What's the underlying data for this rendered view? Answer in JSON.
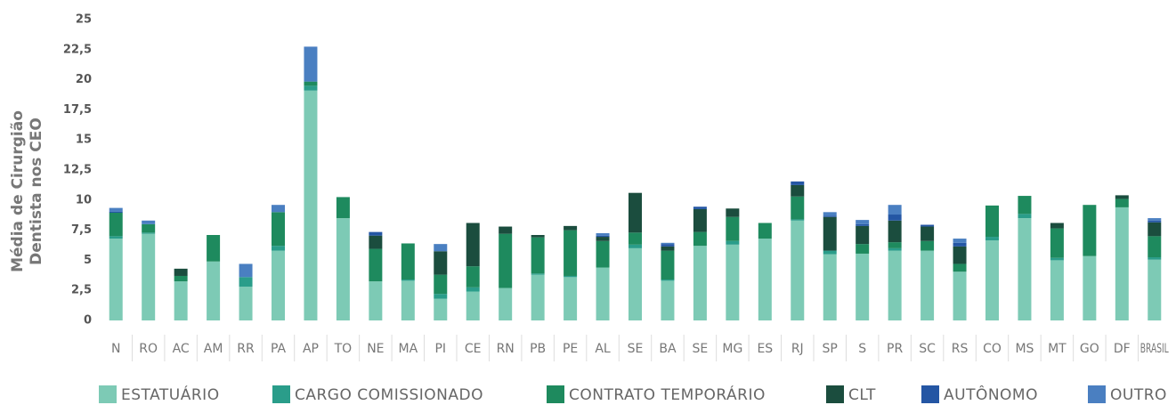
{
  "chart_data": {
    "type": "stacked_bar",
    "y_label": [
      "Média de Cirurgião",
      "Dentista nos CEO"
    ],
    "categories": [
      "N",
      "RO",
      "AC",
      "AM",
      "RR",
      "PA",
      "AP",
      "TO",
      "NE",
      "MA",
      "PI",
      "CE",
      "RN",
      "PB",
      "PE",
      "AL",
      "SE",
      "BA",
      "SE",
      "MG",
      "ES",
      "RJ",
      "SP",
      "S",
      "PR",
      "SC",
      "RS",
      "CO",
      "MS",
      "MT",
      "GO",
      "DF",
      "BRASIL"
    ],
    "ylim": [
      0,
      25
    ],
    "yticks": [
      0,
      {
        "value": 2.5,
        "label": "2,5"
      },
      5,
      {
        "value": 7.5,
        "label": "7,5"
      },
      10,
      {
        "value": 12.5,
        "label": "12,5"
      },
      15,
      {
        "value": 17.5,
        "label": "17,5"
      },
      20,
      {
        "value": 22.5,
        "label": "22,5"
      },
      25
    ],
    "legend": "bottom",
    "series": [
      {
        "name": "ESTATUÁRIO",
        "color": "#7dcab5",
        "values": [
          6.8,
          7.2,
          3.25,
          4.9,
          2.8,
          5.8,
          19.1,
          8.5,
          3.25,
          3.3,
          1.8,
          2.4,
          2.7,
          3.8,
          3.6,
          4.4,
          6.0,
          3.3,
          6.2,
          6.3,
          6.8,
          8.3,
          5.5,
          5.55,
          5.8,
          5.8,
          4.05,
          6.65,
          8.5,
          5.0,
          5.35,
          9.4,
          5.05
        ]
      },
      {
        "name": "CARGO COMISSIONADO",
        "color": "#2a9d8a",
        "values": [
          0.2,
          0.1,
          0,
          0,
          0.8,
          0.4,
          0.4,
          0,
          0,
          0.1,
          0.4,
          0.35,
          0,
          0.1,
          0.1,
          0,
          0.3,
          0.1,
          0,
          0.3,
          0,
          0.1,
          0.3,
          0,
          0.2,
          0,
          0,
          0.3,
          0.35,
          0.2,
          0,
          0,
          0.2
        ]
      },
      {
        "name": "CONTRATO TEMPORÁRIO",
        "color": "#1e8a5e",
        "values": [
          1.95,
          0.7,
          0.45,
          2.2,
          0,
          2.8,
          0.35,
          1.75,
          2.7,
          3.0,
          1.6,
          1.75,
          4.5,
          3.0,
          3.8,
          2.2,
          1.0,
          2.4,
          1.15,
          2.0,
          1.3,
          1.9,
          0,
          0.8,
          0.5,
          0.8,
          0.65,
          2.6,
          1.5,
          2.45,
          4.25,
          0.7,
          1.75
        ]
      },
      {
        "name": "CLT",
        "color": "#1b4d3e",
        "values": [
          0,
          0,
          0.6,
          0,
          0,
          0,
          0,
          0,
          1.1,
          0,
          1.95,
          3.6,
          0.6,
          0.2,
          0.35,
          0.35,
          3.3,
          0.35,
          1.9,
          0.7,
          0,
          0.95,
          2.8,
          1.5,
          1.8,
          1.2,
          1.45,
          0,
          0,
          0.45,
          0,
          0.3,
          1.15
        ]
      },
      {
        "name": "AUTÔNOMO",
        "color": "#2456a4",
        "values": [
          0.1,
          0,
          0,
          0,
          0,
          0,
          0,
          0,
          0.3,
          0,
          0,
          0,
          0,
          0,
          0,
          0.1,
          0,
          0.2,
          0.2,
          0,
          0,
          0.3,
          0.1,
          0.15,
          0.5,
          0.15,
          0.3,
          0,
          0,
          0,
          0,
          0,
          0.15
        ]
      },
      {
        "name": "OUTRO",
        "color": "#4a7fc1",
        "values": [
          0.3,
          0.3,
          0,
          0,
          1.1,
          0.6,
          2.9,
          0,
          0,
          0,
          0.6,
          0,
          0,
          0,
          0,
          0.2,
          0,
          0.1,
          0,
          0,
          0,
          0,
          0.3,
          0.35,
          0.8,
          0,
          0.35,
          0,
          0,
          0,
          0,
          0,
          0.2
        ]
      }
    ]
  }
}
